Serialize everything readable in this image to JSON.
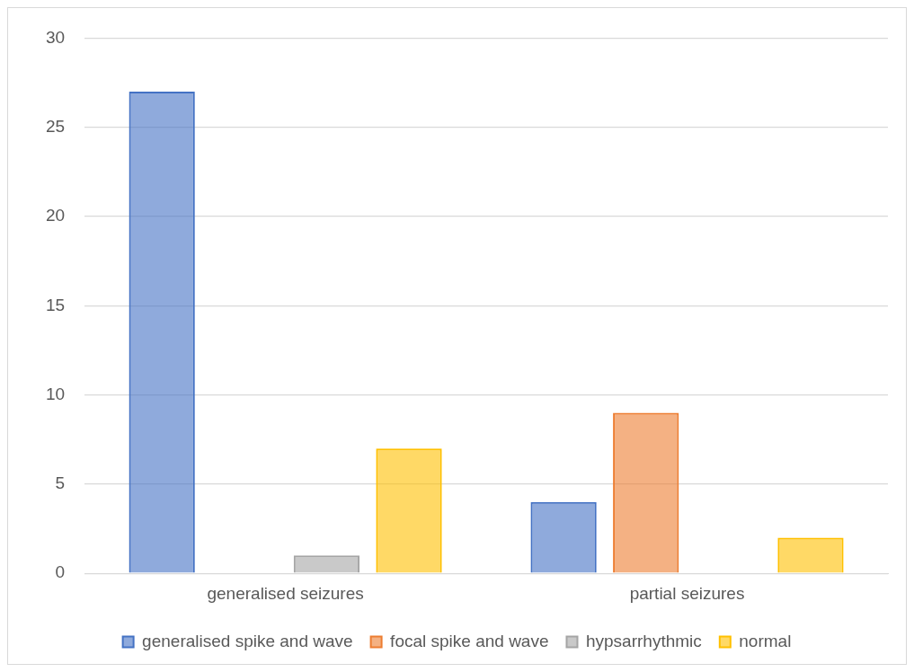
{
  "chart_data": {
    "type": "bar",
    "categories": [
      "generalised seizures",
      "partial seizures"
    ],
    "series": [
      {
        "name": "generalised spike and wave",
        "color": "#4472c4",
        "values": [
          27,
          4
        ]
      },
      {
        "name": "focal spike and wave",
        "color": "#ed7d31",
        "values": [
          0,
          9
        ]
      },
      {
        "name": "hypsarrhythmic",
        "color": "#a5a5a5",
        "values": [
          1,
          0
        ]
      },
      {
        "name": "normal",
        "color": "#ffc000",
        "values": [
          7,
          2
        ]
      }
    ],
    "ylim": [
      0,
      30
    ],
    "yticks": [
      0,
      5,
      10,
      15,
      20,
      25,
      30
    ],
    "grid": "y",
    "legend": "bottom"
  }
}
